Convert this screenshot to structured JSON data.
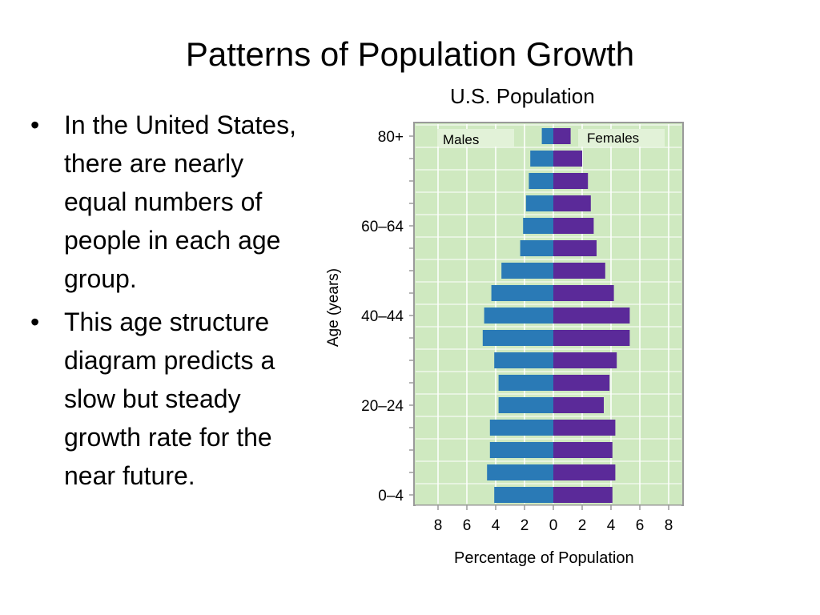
{
  "slide": {
    "title": "Patterns of Population Growth",
    "bullets": [
      "In the United States, there are nearly equal numbers of people in each age group.",
      "This age structure diagram predicts a slow but steady growth rate for the near future."
    ]
  },
  "colors": {
    "plot_background": "#cfe9c0",
    "grid": "#ffffff",
    "frame": "#9a9a9a",
    "males": "#2a7ab6",
    "females": "#5b2a99",
    "legend_background": "#e2f2d8"
  },
  "chart_data": {
    "type": "bar",
    "orientation": "horizontal-population-pyramid",
    "title": "U.S. Population",
    "xlabel": "Percentage of Population",
    "ylabel": "Age (years)",
    "xlim": [
      -8,
      8
    ],
    "x_tick_labels": [
      "8",
      "6",
      "4",
      "2",
      "0",
      "2",
      "4",
      "6",
      "8"
    ],
    "x_tick_values": [
      -8,
      -6,
      -4,
      -2,
      0,
      2,
      4,
      6,
      8
    ],
    "age_labels_shown": [
      {
        "label": "80+",
        "group_index": 0
      },
      {
        "label": "60–64",
        "group_index": 4
      },
      {
        "label": "40–44",
        "group_index": 8
      },
      {
        "label": "20–24",
        "group_index": 12
      },
      {
        "label": "0–4",
        "group_index": 16
      }
    ],
    "age_group_count": 17,
    "grid": true,
    "series": [
      {
        "name": "Males",
        "values": [
          0.8,
          1.6,
          1.7,
          1.9,
          2.1,
          2.3,
          3.6,
          4.3,
          4.8,
          4.9,
          4.1,
          3.8,
          3.8,
          4.4,
          4.4,
          4.6,
          4.1
        ]
      },
      {
        "name": "Females",
        "values": [
          1.2,
          2.0,
          2.4,
          2.6,
          2.8,
          3.0,
          3.6,
          4.2,
          5.3,
          5.3,
          4.4,
          3.9,
          3.5,
          4.3,
          4.1,
          4.3,
          4.1
        ]
      }
    ],
    "legend": [
      "Males",
      "Females"
    ],
    "legend_placement": "top, inside plot"
  }
}
